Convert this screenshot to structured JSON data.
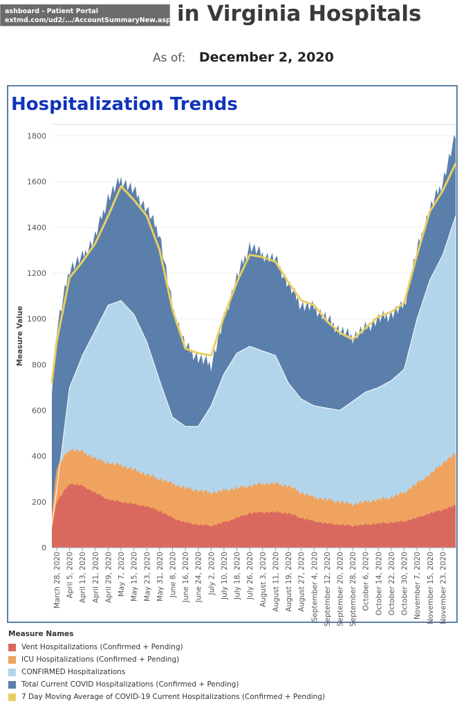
{
  "browser_tooltip": {
    "title": "ashboard - Patient Portal",
    "url": "extmd.com/ud2/.../AccountSummaryNew.aspx"
  },
  "header": {
    "title": "in Virginia Hospitals",
    "as_of_label": "As of:",
    "as_of_value": "December 2, 2020"
  },
  "chart": {
    "title": "Hospitalization Trends",
    "ylabel": "Measure Value"
  },
  "legend": {
    "title": "Measure Names",
    "items": [
      {
        "label": "Vent Hospitalizations (Confirmed + Pending)",
        "color": "#d9695f"
      },
      {
        "label": "ICU Hospitalizations (Confirmed + Pending)",
        "color": "#f0a35e"
      },
      {
        "label": "CONFIRMED Hospitalizations",
        "color": "#b3d5ec"
      },
      {
        "label": "Total Current COVID Hospitalizations (Confirmed + Pending)",
        "color": "#5b7fab"
      },
      {
        "label": "7 Day Moving Average of COVID-19 Current Hospitalizations (Confirmed + Pending)",
        "color": "#e8cf63"
      }
    ]
  },
  "chart_data": {
    "type": "area",
    "title": "Hospitalization Trends",
    "ylabel": "Measure Value",
    "ylim": [
      0,
      1850
    ],
    "yticks": [
      0,
      200,
      400,
      600,
      800,
      1000,
      1200,
      1400,
      1600,
      1800
    ],
    "grid": true,
    "legend_position": "bottom",
    "x": [
      "2020-03-25",
      "2020-03-28",
      "2020-04-05",
      "2020-04-13",
      "2020-04-21",
      "2020-04-29",
      "2020-05-07",
      "2020-05-15",
      "2020-05-23",
      "2020-05-31",
      "2020-06-08",
      "2020-06-16",
      "2020-06-24",
      "2020-07-02",
      "2020-07-10",
      "2020-07-18",
      "2020-07-26",
      "2020-08-03",
      "2020-08-11",
      "2020-08-19",
      "2020-08-27",
      "2020-09-04",
      "2020-09-12",
      "2020-09-20",
      "2020-09-28",
      "2020-10-06",
      "2020-10-14",
      "2020-10-22",
      "2020-10-30",
      "2020-11-07",
      "2020-11-15",
      "2020-11-23",
      "2020-12-01"
    ],
    "x_tick_labels": [
      "March 28, 2020",
      "April 5, 2020",
      "April 13, 2020",
      "April 21, 2020",
      "April 29, 2020",
      "May 7, 2020",
      "May 15, 2020",
      "May 23, 2020",
      "May 31, 2020",
      "June 8, 2020",
      "June 16, 2020",
      "June 24, 2020",
      "July 2, 2020",
      "July 10, 2020",
      "July 18, 2020",
      "July 26, 2020",
      "August 3, 2020",
      "August 11, 2020",
      "August 19, 2020",
      "August 27, 2020",
      "September 4, 2020",
      "September 12, 2020",
      "September 20, 2020",
      "September 28, 2020",
      "October 6, 2020",
      "October 14, 2020",
      "October 22, 2020",
      "October 30, 2020",
      "November 7, 2020",
      "November 15, 2020",
      "November 23, 2020"
    ],
    "series": [
      {
        "name": "Total Current COVID Hospitalizations (Confirmed + Pending)",
        "color": "#5b7fab",
        "values": [
          700,
          950,
          1220,
          1270,
          1360,
          1530,
          1610,
          1560,
          1480,
          1370,
          1050,
          880,
          830,
          800,
          1000,
          1180,
          1320,
          1280,
          1260,
          1150,
          1060,
          1050,
          1000,
          950,
          920,
          960,
          1000,
          1020,
          1060,
          1300,
          1480,
          1600,
          1800
        ]
      },
      {
        "name": "CONFIRMED Hospitalizations",
        "color": "#b3d5ec",
        "values": [
          100,
          250,
          700,
          840,
          950,
          1060,
          1080,
          1020,
          900,
          730,
          570,
          530,
          530,
          620,
          760,
          850,
          880,
          860,
          840,
          720,
          650,
          620,
          610,
          600,
          640,
          680,
          700,
          730,
          780,
          1000,
          1170,
          1280,
          1450
        ]
      },
      {
        "name": "ICU Hospitalizations (Confirmed + Pending)",
        "color": "#f0a35e",
        "values": [
          150,
          350,
          430,
          420,
          390,
          370,
          360,
          340,
          320,
          300,
          280,
          260,
          250,
          240,
          250,
          260,
          270,
          280,
          280,
          270,
          240,
          220,
          210,
          200,
          190,
          200,
          210,
          220,
          240,
          280,
          320,
          370,
          410
        ]
      },
      {
        "name": "Vent Hospitalizations (Confirmed + Pending)",
        "color": "#d9695f",
        "values": [
          80,
          200,
          280,
          270,
          240,
          210,
          200,
          190,
          180,
          160,
          130,
          110,
          100,
          95,
          110,
          130,
          150,
          155,
          155,
          150,
          130,
          115,
          105,
          100,
          95,
          100,
          105,
          110,
          115,
          130,
          150,
          165,
          185
        ]
      },
      {
        "name": "7 Day Moving Average of COVID-19 Current Hospitalizations (Confirmed + Pending)",
        "color": "#e8cf63",
        "values": [
          720,
          900,
          1180,
          1250,
          1330,
          1450,
          1580,
          1520,
          1450,
          1300,
          1040,
          870,
          850,
          840,
          1010,
          1160,
          1280,
          1270,
          1250,
          1160,
          1080,
          1060,
          990,
          940,
          910,
          960,
          1010,
          1030,
          1070,
          1280,
          1470,
          1560,
          1680
        ]
      }
    ]
  }
}
